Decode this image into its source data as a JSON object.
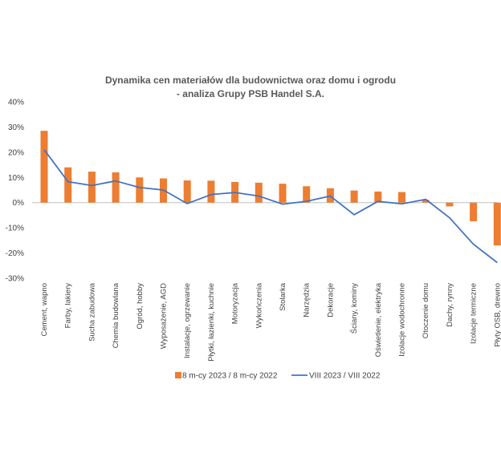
{
  "chart_data": {
    "type": "bar",
    "title_lines": [
      "Dynamika cen materiałów dla budownictwa oraz domu i ogrodu",
      "- analiza Grupy PSB Handel S.A."
    ],
    "categories": [
      "Cement, wapno",
      "Farby, lakiery",
      "Sucha zabudowa",
      "Chemia budowlana",
      "Ogród, hobby",
      "Wyposażenie, AGD",
      "Instalacje, ogrzewanie",
      "Płytki, łazienki, kuchnie",
      "Motoryzacja",
      "Wykończenia",
      "Stolarka",
      "Narzędzia",
      "Dekoracje",
      "Ściany, kominy",
      "Oświetlenie, elektryka",
      "Izolacje wodochronne",
      "Otoczenie domu",
      "Dachy, rynny",
      "Izolacje termiczne",
      "Płyty OSB, drewno"
    ],
    "series": [
      {
        "name": "8 m-cy 2023 / 8 m-cy 2022",
        "type": "bar",
        "color": "#ED7D31",
        "values": [
          28.5,
          14,
          12.3,
          12,
          10,
          9.6,
          8.8,
          8.7,
          8.2,
          7.9,
          7.5,
          6.5,
          5.7,
          4.8,
          4.4,
          4.2,
          1.1,
          -1.5,
          -7.4,
          -17
        ]
      },
      {
        "name": "VIII 2023 / VIII 2022",
        "type": "line",
        "color": "#4472C4",
        "values": [
          21,
          8.3,
          6.8,
          8.6,
          6,
          5,
          -0.4,
          3.2,
          4,
          2.6,
          -0.6,
          0.5,
          2.6,
          -4.8,
          0.5,
          -0.5,
          1.3,
          -6,
          -16.5,
          -23.8
        ]
      }
    ],
    "yticks": [
      "40%",
      "30%",
      "20%",
      "10%",
      "0%",
      "-10%",
      "-20%",
      "-30%"
    ],
    "ylim": [
      -30,
      40
    ],
    "ylabel": "",
    "xlabel": "",
    "grid": false,
    "legend_position": "bottom"
  }
}
